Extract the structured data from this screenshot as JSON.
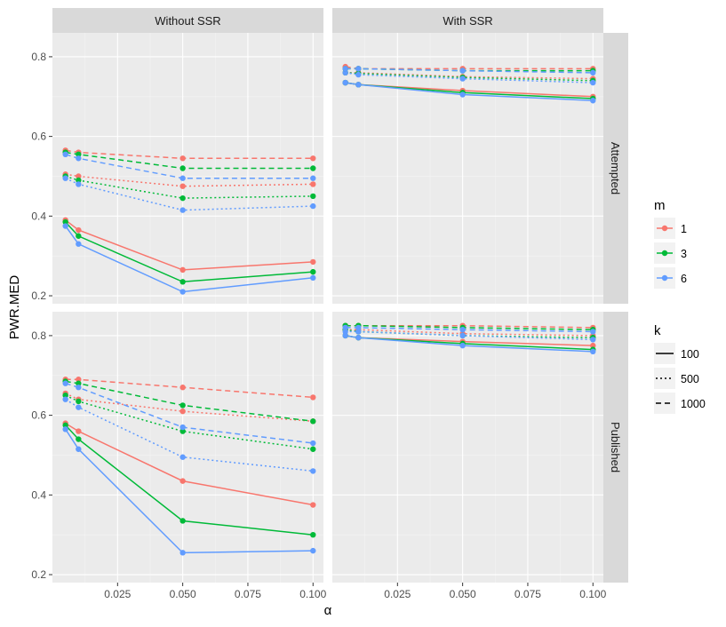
{
  "chart_data": {
    "type": "line",
    "ylabel": "PWR.MED",
    "xlabel": "α",
    "x": [
      0.005,
      0.01,
      0.05,
      0.1
    ],
    "xlim": [
      0.0,
      0.104
    ],
    "ylim": [
      0.18,
      0.86
    ],
    "x_ticks": [
      0.025,
      0.05,
      0.075,
      0.1
    ],
    "x_tick_labels": [
      "0.025",
      "0.050",
      "0.075",
      "0.100"
    ],
    "y_ticks": [
      0.2,
      0.4,
      0.6,
      0.8
    ],
    "y_tick_labels": [
      "0.2",
      "0.4",
      "0.6",
      "0.8"
    ],
    "columns": [
      "Without SSR",
      "With SSR"
    ],
    "rows": [
      "Attempted",
      "Published"
    ],
    "legend_m": {
      "title": "m",
      "entries": [
        {
          "label": "1",
          "color": "#F8766D"
        },
        {
          "label": "3",
          "color": "#00BA38"
        },
        {
          "label": "6",
          "color": "#619CFF"
        }
      ]
    },
    "legend_k": {
      "title": "k",
      "entries": [
        {
          "label": "100",
          "dash": "solid"
        },
        {
          "label": "500",
          "dash": "dotted"
        },
        {
          "label": "1000",
          "dash": "dashed"
        }
      ]
    },
    "panels": [
      {
        "row": "Attempted",
        "col": "Without SSR",
        "series": [
          {
            "m": "1",
            "k": "100",
            "values": [
              0.39,
              0.365,
              0.265,
              0.285
            ]
          },
          {
            "m": "3",
            "k": "100",
            "values": [
              0.385,
              0.35,
              0.235,
              0.26
            ]
          },
          {
            "m": "6",
            "k": "100",
            "values": [
              0.375,
              0.33,
              0.21,
              0.245
            ]
          },
          {
            "m": "1",
            "k": "500",
            "values": [
              0.505,
              0.5,
              0.475,
              0.48
            ]
          },
          {
            "m": "3",
            "k": "500",
            "values": [
              0.5,
              0.49,
              0.445,
              0.45
            ]
          },
          {
            "m": "6",
            "k": "500",
            "values": [
              0.495,
              0.48,
              0.415,
              0.425
            ]
          },
          {
            "m": "1",
            "k": "1000",
            "values": [
              0.565,
              0.56,
              0.545,
              0.545
            ]
          },
          {
            "m": "3",
            "k": "1000",
            "values": [
              0.56,
              0.555,
              0.52,
              0.52
            ]
          },
          {
            "m": "6",
            "k": "1000",
            "values": [
              0.555,
              0.545,
              0.495,
              0.495
            ]
          }
        ]
      },
      {
        "row": "Attempted",
        "col": "With SSR",
        "series": [
          {
            "m": "1",
            "k": "100",
            "values": [
              0.735,
              0.73,
              0.715,
              0.7
            ]
          },
          {
            "m": "3",
            "k": "100",
            "values": [
              0.735,
              0.73,
              0.71,
              0.695
            ]
          },
          {
            "m": "6",
            "k": "100",
            "values": [
              0.735,
              0.73,
              0.705,
              0.69
            ]
          },
          {
            "m": "1",
            "k": "500",
            "values": [
              0.76,
              0.76,
              0.75,
              0.745
            ]
          },
          {
            "m": "3",
            "k": "500",
            "values": [
              0.76,
              0.758,
              0.748,
              0.74
            ]
          },
          {
            "m": "6",
            "k": "500",
            "values": [
              0.76,
              0.755,
              0.745,
              0.735
            ]
          },
          {
            "m": "1",
            "k": "1000",
            "values": [
              0.775,
              0.77,
              0.77,
              0.77
            ]
          },
          {
            "m": "3",
            "k": "1000",
            "values": [
              0.77,
              0.77,
              0.765,
              0.765
            ]
          },
          {
            "m": "6",
            "k": "1000",
            "values": [
              0.77,
              0.77,
              0.765,
              0.76
            ]
          }
        ]
      },
      {
        "row": "Published",
        "col": "Without SSR",
        "series": [
          {
            "m": "1",
            "k": "100",
            "values": [
              0.58,
              0.56,
              0.435,
              0.375
            ]
          },
          {
            "m": "3",
            "k": "100",
            "values": [
              0.575,
              0.54,
              0.335,
              0.3
            ]
          },
          {
            "m": "6",
            "k": "100",
            "values": [
              0.565,
              0.515,
              0.255,
              0.26
            ]
          },
          {
            "m": "1",
            "k": "500",
            "values": [
              0.655,
              0.64,
              0.61,
              0.585
            ]
          },
          {
            "m": "3",
            "k": "500",
            "values": [
              0.65,
              0.635,
              0.56,
              0.515
            ]
          },
          {
            "m": "6",
            "k": "500",
            "values": [
              0.64,
              0.62,
              0.495,
              0.46
            ]
          },
          {
            "m": "1",
            "k": "1000",
            "values": [
              0.69,
              0.69,
              0.67,
              0.645
            ]
          },
          {
            "m": "3",
            "k": "1000",
            "values": [
              0.685,
              0.68,
              0.625,
              0.585
            ]
          },
          {
            "m": "6",
            "k": "1000",
            "values": [
              0.68,
              0.67,
              0.57,
              0.53
            ]
          }
        ]
      },
      {
        "row": "Published",
        "col": "With SSR",
        "series": [
          {
            "m": "1",
            "k": "100",
            "values": [
              0.8,
              0.795,
              0.785,
              0.775
            ]
          },
          {
            "m": "3",
            "k": "100",
            "values": [
              0.8,
              0.795,
              0.78,
              0.765
            ]
          },
          {
            "m": "6",
            "k": "100",
            "values": [
              0.8,
              0.795,
              0.775,
              0.76
            ]
          },
          {
            "m": "1",
            "k": "500",
            "values": [
              0.815,
              0.815,
              0.805,
              0.8
            ]
          },
          {
            "m": "3",
            "k": "500",
            "values": [
              0.815,
              0.81,
              0.8,
              0.795
            ]
          },
          {
            "m": "6",
            "k": "500",
            "values": [
              0.81,
              0.81,
              0.8,
              0.79
            ]
          },
          {
            "m": "1",
            "k": "1000",
            "values": [
              0.825,
              0.825,
              0.825,
              0.82
            ]
          },
          {
            "m": "3",
            "k": "1000",
            "values": [
              0.825,
              0.825,
              0.82,
              0.815
            ]
          },
          {
            "m": "6",
            "k": "1000",
            "values": [
              0.82,
              0.82,
              0.815,
              0.81
            ]
          }
        ]
      }
    ]
  }
}
